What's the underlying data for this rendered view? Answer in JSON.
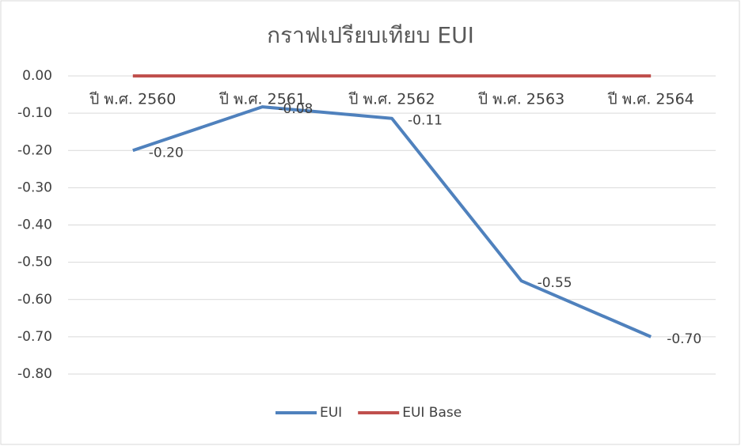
{
  "chart_data": {
    "type": "line",
    "title": "กราฟเปรียบเทียบ EUI",
    "categories": [
      "ปี พ.ศ. 2560",
      "ปี พ.ศ. 2561",
      "ปี พ.ศ. 2562",
      "ปี พ.ศ. 2563",
      "ปี พ.ศ. 2564"
    ],
    "series": [
      {
        "name": "EUI",
        "color": "#4f81bd",
        "values": [
          -0.2,
          -0.083,
          -0.114,
          -0.55,
          -0.7
        ],
        "value_labels": [
          "-0.20",
          "-0.08",
          "-0.11",
          "-0.55",
          "-0.70"
        ]
      },
      {
        "name": "EUI Base",
        "color": "#c0504d",
        "values": [
          0,
          0,
          0,
          0,
          0
        ]
      }
    ],
    "ylim": [
      -0.8,
      0
    ],
    "yticks": [
      {
        "value": 0,
        "label": "0.00"
      },
      {
        "value": -0.1,
        "label": "-0.10"
      },
      {
        "value": -0.2,
        "label": "-0.20"
      },
      {
        "value": -0.3,
        "label": "-0.30"
      },
      {
        "value": -0.4,
        "label": "-0.40"
      },
      {
        "value": -0.5,
        "label": "-0.50"
      },
      {
        "value": -0.6,
        "label": "-0.60"
      },
      {
        "value": -0.7,
        "label": "-0.70"
      },
      {
        "value": -0.8,
        "label": "-0.80"
      }
    ],
    "grid": true,
    "legend": "bottom"
  }
}
